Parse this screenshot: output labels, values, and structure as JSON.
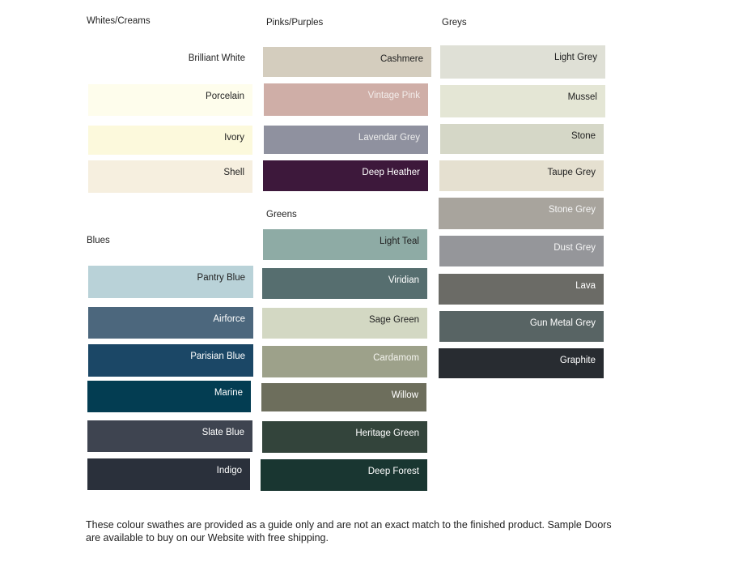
{
  "groups": [
    {
      "title": "Whites/Creams",
      "swatches": [
        {
          "name": "Brilliant White",
          "color": "#ffffff",
          "text": "#222222"
        },
        {
          "name": "Porcelain",
          "color": "#fefdec",
          "text": "#222222"
        },
        {
          "name": "Ivory",
          "color": "#fcf9dc",
          "text": "#222222"
        },
        {
          "name": "Shell",
          "color": "#f6efdf",
          "text": "#222222"
        }
      ]
    },
    {
      "title": "Pinks/Purples",
      "swatches": [
        {
          "name": "Cashmere",
          "color": "#d4cdbe",
          "text": "#222222"
        },
        {
          "name": "Vintage Pink",
          "color": "#cfaea7",
          "text": "#f2ecea"
        },
        {
          "name": "Lavendar Grey",
          "color": "#8f919f",
          "text": "#eeeeee"
        },
        {
          "name": "Deep Heather",
          "color": "#3d183b",
          "text": "#ffffff"
        }
      ]
    },
    {
      "title": "Greens",
      "swatches": [
        {
          "name": "Light Teal",
          "color": "#8eaba5",
          "text": "#222222"
        },
        {
          "name": "Viridian",
          "color": "#566e6f",
          "text": "#ffffff"
        },
        {
          "name": "Sage Green",
          "color": "#d3d8c3",
          "text": "#222222"
        },
        {
          "name": "Cardamom",
          "color": "#9da18a",
          "text": "#f4f4ee"
        },
        {
          "name": "Willow",
          "color": "#6d6e5c",
          "text": "#ffffff"
        },
        {
          "name": "Heritage Green",
          "color": "#33443b",
          "text": "#ffffff"
        },
        {
          "name": "Deep Forest",
          "color": "#193631",
          "text": "#ffffff"
        }
      ]
    },
    {
      "title": "Blues",
      "swatches": [
        {
          "name": "Pantry Blue",
          "color": "#b9d2d8",
          "text": "#222222"
        },
        {
          "name": "Airforce",
          "color": "#4c677d",
          "text": "#ffffff"
        },
        {
          "name": "Parisian Blue",
          "color": "#1b4766",
          "text": "#ffffff"
        },
        {
          "name": "Marine",
          "color": "#033d52",
          "text": "#ffffff"
        },
        {
          "name": "Slate Blue",
          "color": "#3e4450",
          "text": "#ffffff"
        },
        {
          "name": "Indigo",
          "color": "#2a303b",
          "text": "#ffffff"
        }
      ]
    },
    {
      "title": "Greys",
      "swatches": [
        {
          "name": "Light Grey",
          "color": "#dfe0d6",
          "text": "#222222"
        },
        {
          "name": "Mussel",
          "color": "#e4e6d5",
          "text": "#222222"
        },
        {
          "name": "Stone",
          "color": "#d5d7c7",
          "text": "#222222"
        },
        {
          "name": "Taupe Grey",
          "color": "#e5e0d0",
          "text": "#222222"
        },
        {
          "name": "Stone Grey",
          "color": "#a8a49d",
          "text": "#f5f5f5"
        },
        {
          "name": "Dust Grey",
          "color": "#95969a",
          "text": "#f5f5f5"
        },
        {
          "name": "Lava",
          "color": "#6b6b66",
          "text": "#ffffff"
        },
        {
          "name": "Gun Metal Grey",
          "color": "#586464",
          "text": "#ffffff"
        },
        {
          "name": "Graphite",
          "color": "#282c31",
          "text": "#ffffff"
        }
      ]
    }
  ],
  "footer": "These colour swathes are provided as a guide only and are not an exact match to the finished product.  Sample Doors are available to buy on our Website with free shipping."
}
